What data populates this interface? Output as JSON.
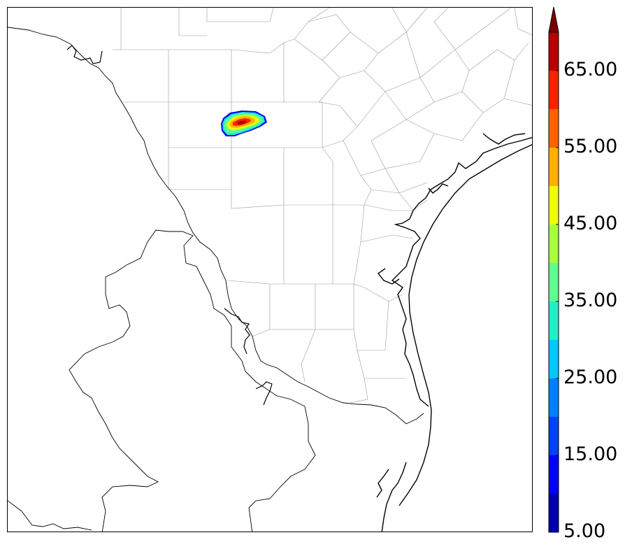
{
  "map": {
    "type": "radar reflectivity map",
    "region_features": [
      "county-borders",
      "state-borders",
      "coastline",
      "international-border"
    ],
    "echo_cell": {
      "max_value_bin": 65
    }
  },
  "colorbar": {
    "labels": [
      "65.00",
      "55.00",
      "45.00",
      "35.00",
      "25.00",
      "15.00",
      "5.00"
    ],
    "bins": [
      5,
      10,
      15,
      20,
      25,
      30,
      35,
      40,
      45,
      50,
      55,
      60,
      65,
      70
    ],
    "colors": [
      "#0000a8",
      "#0000ff",
      "#0040ff",
      "#0080ff",
      "#00c8ff",
      "#20f0c8",
      "#60ff90",
      "#a8ff40",
      "#f0ff00",
      "#ffb000",
      "#ff6400",
      "#ff2000",
      "#b40000"
    ],
    "extend_color": "#7a0000"
  }
}
